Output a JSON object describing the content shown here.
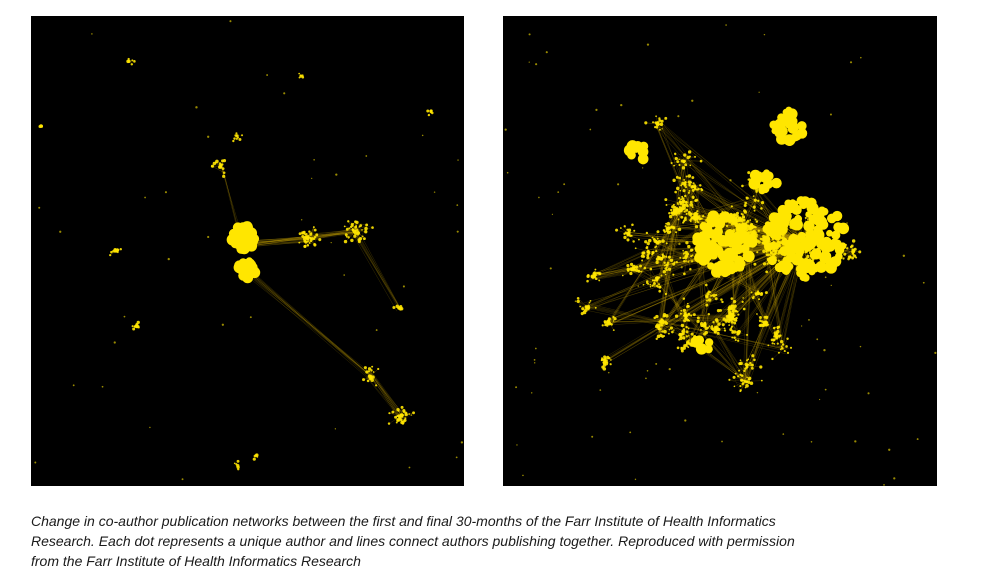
{
  "figure": {
    "caption_lines": [
      "Change in co-author publication networks between the first and final 30-months of the Farr Institute of Health Informatics",
      "Research. Each dot represents a unique author and lines connect authors publishing together. Reproduced with permission",
      "from the Farr Institute of Health Informatics Research"
    ],
    "colors": {
      "background": "#000000",
      "node": "#ffe600",
      "edge": "#c9a400",
      "caption_text": "#1a1a1a"
    },
    "panels": [
      {
        "id": "first-30-months",
        "description_visible": false
      },
      {
        "id": "final-30-months",
        "description_visible": false
      }
    ]
  }
}
